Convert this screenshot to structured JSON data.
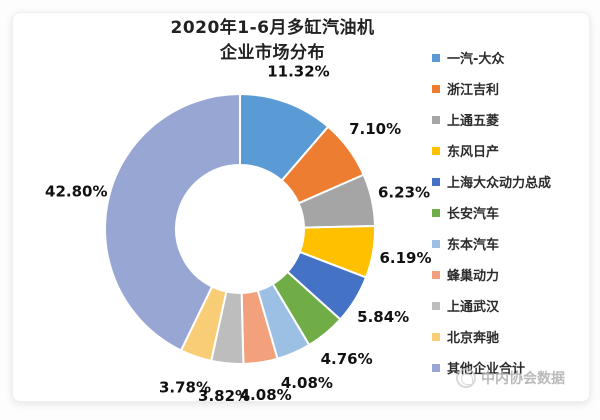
{
  "page": {
    "watermark": "中内协会数据"
  },
  "chart_data": {
    "type": "pie",
    "donut": true,
    "title": "2020年1-6月多缸汽油机 企业市场分布",
    "title_lines": [
      "2020年1-6月多缸汽油机",
      "企业市场分布"
    ],
    "start_angle_deg": 0,
    "direction": "clockwise",
    "legend_position": "right",
    "categories": [
      "一汽-大众",
      "浙江吉利",
      "上通五菱",
      "东风日产",
      "上海大众动力总成",
      "长安汽车",
      "东本汽车",
      "蜂巢动力",
      "上通武汉",
      "北京奔驰",
      "其他企业合计"
    ],
    "values": [
      11.32,
      7.1,
      6.23,
      6.19,
      5.84,
      4.76,
      4.08,
      4.08,
      3.82,
      3.78,
      42.8
    ],
    "labels": [
      "11.32%",
      "7.10%",
      "6.23%",
      "6.19%",
      "5.84%",
      "4.76%",
      "4.08%",
      "4.08%",
      "3.82%",
      "3.78%",
      "42.80%"
    ],
    "colors": [
      "#5B9BD5",
      "#ED7D31",
      "#A5A5A5",
      "#FFC000",
      "#4472C4",
      "#70AD47",
      "#9CC0E4",
      "#F2A17C",
      "#BDBDBD",
      "#F9CD76",
      "#98A6D4"
    ]
  }
}
